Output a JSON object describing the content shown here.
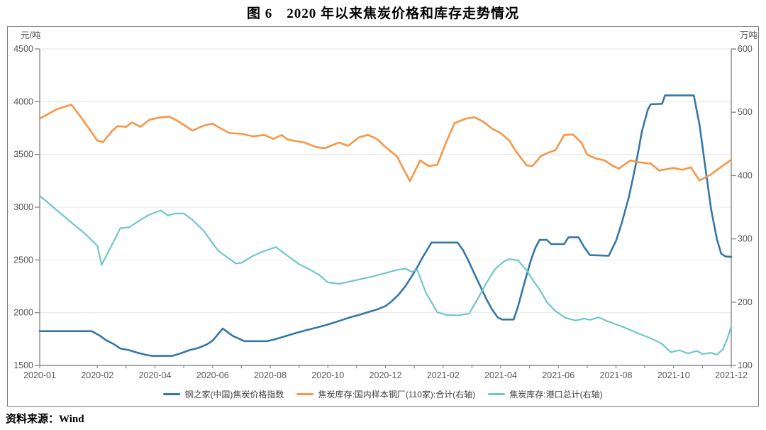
{
  "title": "图 6　2020 年以来焦炭价格和库存走势情况",
  "source_note": "资料来源：Wind",
  "colors": {
    "price_line": "#3478a6",
    "mill_inventory_line": "#f79646",
    "port_inventory_line": "#6fc8c6",
    "grid_line": "#e7e7e7",
    "axis_line": "#8a8a8a",
    "tick_text": "#595959",
    "frame_border": "#7d7d7d"
  },
  "chart_data": {
    "type": "line",
    "title": "图 6　2020 年以来焦炭价格和库存走势情况",
    "grid": "horizontal",
    "legend_position": "bottom",
    "x_tick_labels": [
      "2020-01",
      "2020-02",
      "2020-04",
      "2020-06",
      "2020-08",
      "2020-10",
      "2020-12",
      "2021-02",
      "2021-04",
      "2021-06",
      "2021-08",
      "2021-10",
      "2021-12"
    ],
    "x_tick_t": [
      0,
      1,
      3,
      5,
      7,
      9,
      11,
      13,
      15,
      17,
      19,
      21,
      23
    ],
    "x_months_total": 23,
    "left_axis": {
      "unit": "元/吨",
      "min": 1500,
      "max": 4500,
      "ticks": [
        4500,
        4000,
        3500,
        3000,
        2500,
        2000,
        1500
      ]
    },
    "right_axis": {
      "unit": "万吨",
      "min": 100,
      "max": 600,
      "ticks": [
        600,
        500,
        400,
        300,
        200,
        100
      ]
    },
    "series": [
      {
        "name": "钢之家(中国)焦炭价格指数",
        "axis": "left",
        "color": "#3478a6",
        "stroke_width": 2.6,
        "points": [
          [
            0,
            1825
          ],
          [
            0.9,
            1825
          ],
          [
            1.1,
            1780
          ],
          [
            1.3,
            1740
          ],
          [
            1.55,
            1705
          ],
          [
            1.8,
            1660
          ],
          [
            2.1,
            1645
          ],
          [
            2.4,
            1620
          ],
          [
            2.7,
            1600
          ],
          [
            2.9,
            1590
          ],
          [
            3.6,
            1590
          ],
          [
            3.9,
            1615
          ],
          [
            4.2,
            1645
          ],
          [
            4.5,
            1665
          ],
          [
            4.8,
            1700
          ],
          [
            5.0,
            1735
          ],
          [
            5.2,
            1800
          ],
          [
            5.35,
            1850
          ],
          [
            5.5,
            1820
          ],
          [
            5.7,
            1780
          ],
          [
            5.9,
            1755
          ],
          [
            6.1,
            1730
          ],
          [
            6.9,
            1730
          ],
          [
            7.2,
            1750
          ],
          [
            7.5,
            1775
          ],
          [
            7.8,
            1800
          ],
          [
            8.2,
            1830
          ],
          [
            8.6,
            1858
          ],
          [
            8.9,
            1880
          ],
          [
            9.2,
            1905
          ],
          [
            9.5,
            1932
          ],
          [
            9.8,
            1958
          ],
          [
            10.1,
            1980
          ],
          [
            10.4,
            2005
          ],
          [
            10.7,
            2030
          ],
          [
            11.0,
            2062
          ],
          [
            11.2,
            2105
          ],
          [
            11.45,
            2170
          ],
          [
            11.7,
            2255
          ],
          [
            11.9,
            2340
          ],
          [
            12.1,
            2430
          ],
          [
            12.3,
            2530
          ],
          [
            12.5,
            2620
          ],
          [
            12.6,
            2665
          ],
          [
            13.5,
            2665
          ],
          [
            13.7,
            2590
          ],
          [
            13.9,
            2480
          ],
          [
            14.1,
            2360
          ],
          [
            14.3,
            2245
          ],
          [
            14.5,
            2130
          ],
          [
            14.7,
            2030
          ],
          [
            14.9,
            1955
          ],
          [
            15.05,
            1935
          ],
          [
            15.45,
            1935
          ],
          [
            15.6,
            2060
          ],
          [
            15.75,
            2210
          ],
          [
            15.9,
            2360
          ],
          [
            16.05,
            2500
          ],
          [
            16.2,
            2615
          ],
          [
            16.35,
            2690
          ],
          [
            16.6,
            2690
          ],
          [
            16.75,
            2650
          ],
          [
            17.2,
            2650
          ],
          [
            17.35,
            2715
          ],
          [
            17.7,
            2715
          ],
          [
            17.9,
            2620
          ],
          [
            18.1,
            2545
          ],
          [
            18.75,
            2540
          ],
          [
            19.0,
            2680
          ],
          [
            19.2,
            2850
          ],
          [
            19.45,
            3100
          ],
          [
            19.7,
            3420
          ],
          [
            19.9,
            3720
          ],
          [
            20.1,
            3920
          ],
          [
            20.2,
            3975
          ],
          [
            20.6,
            3980
          ],
          [
            20.7,
            4060
          ],
          [
            21.7,
            4060
          ],
          [
            21.9,
            3780
          ],
          [
            22.1,
            3380
          ],
          [
            22.3,
            2980
          ],
          [
            22.5,
            2700
          ],
          [
            22.65,
            2560
          ],
          [
            22.8,
            2533
          ],
          [
            23,
            2530
          ]
        ]
      },
      {
        "name": "焦炭库存:国内样本钢厂(110家):合计(右轴)",
        "axis": "right",
        "color": "#f79646",
        "stroke_width": 2.6,
        "points": [
          [
            0,
            490
          ],
          [
            0.3,
            505
          ],
          [
            0.55,
            512
          ],
          [
            0.75,
            488
          ],
          [
            1.0,
            455
          ],
          [
            1.2,
            453
          ],
          [
            1.5,
            470
          ],
          [
            1.7,
            478
          ],
          [
            2.0,
            477
          ],
          [
            2.2,
            484
          ],
          [
            2.5,
            477
          ],
          [
            2.8,
            488
          ],
          [
            3.2,
            492
          ],
          [
            3.5,
            493
          ],
          [
            3.8,
            486
          ],
          [
            4.0,
            480
          ],
          [
            4.3,
            471
          ],
          [
            4.7,
            479
          ],
          [
            5.0,
            482
          ],
          [
            5.3,
            474
          ],
          [
            5.6,
            467
          ],
          [
            6.0,
            466
          ],
          [
            6.4,
            462
          ],
          [
            6.8,
            464
          ],
          [
            7.1,
            458
          ],
          [
            7.4,
            464
          ],
          [
            7.6,
            457
          ],
          [
            8.2,
            452
          ],
          [
            8.6,
            445
          ],
          [
            8.9,
            443
          ],
          [
            9.2,
            449
          ],
          [
            9.4,
            452
          ],
          [
            9.7,
            447
          ],
          [
            10.1,
            461
          ],
          [
            10.4,
            464
          ],
          [
            10.7,
            458
          ],
          [
            11.0,
            445
          ],
          [
            11.4,
            430
          ],
          [
            11.85,
            391
          ],
          [
            12.2,
            424
          ],
          [
            12.5,
            415
          ],
          [
            12.8,
            417
          ],
          [
            13.1,
            452
          ],
          [
            13.4,
            483
          ],
          [
            13.8,
            490
          ],
          [
            14.1,
            492
          ],
          [
            14.4,
            485
          ],
          [
            14.7,
            474
          ],
          [
            15.0,
            467
          ],
          [
            15.3,
            455
          ],
          [
            15.5,
            440
          ],
          [
            15.9,
            416
          ],
          [
            16.1,
            415
          ],
          [
            16.4,
            431
          ],
          [
            16.7,
            437
          ],
          [
            16.9,
            440
          ],
          [
            17.2,
            464
          ],
          [
            17.5,
            465
          ],
          [
            17.8,
            452
          ],
          [
            18.0,
            433
          ],
          [
            18.3,
            427
          ],
          [
            18.6,
            424
          ],
          [
            18.9,
            415
          ],
          [
            19.1,
            411
          ],
          [
            19.5,
            424
          ],
          [
            19.8,
            421
          ],
          [
            20.2,
            419
          ],
          [
            20.5,
            408
          ],
          [
            21.0,
            412
          ],
          [
            21.3,
            409
          ],
          [
            21.6,
            413
          ],
          [
            21.9,
            392
          ],
          [
            22.3,
            402
          ],
          [
            22.6,
            412
          ],
          [
            23,
            425
          ]
        ]
      },
      {
        "name": "焦炭库存:港口总计(右轴)",
        "axis": "right",
        "color": "#6fc8c6",
        "stroke_width": 2.2,
        "points": [
          [
            0,
            368
          ],
          [
            0.3,
            345
          ],
          [
            0.6,
            322
          ],
          [
            0.8,
            307
          ],
          [
            1.0,
            289
          ],
          [
            1.15,
            259
          ],
          [
            1.5,
            290
          ],
          [
            1.8,
            317
          ],
          [
            2.1,
            318
          ],
          [
            2.5,
            330
          ],
          [
            2.8,
            338
          ],
          [
            3.2,
            345
          ],
          [
            3.45,
            337
          ],
          [
            3.7,
            340
          ],
          [
            4.0,
            340
          ],
          [
            4.3,
            330
          ],
          [
            4.7,
            312
          ],
          [
            5.0,
            293
          ],
          [
            5.2,
            281
          ],
          [
            5.8,
            261
          ],
          [
            6.0,
            262
          ],
          [
            6.4,
            273
          ],
          [
            6.75,
            280
          ],
          [
            7.2,
            287
          ],
          [
            7.7,
            270
          ],
          [
            8.0,
            260
          ],
          [
            8.35,
            252
          ],
          [
            8.7,
            243
          ],
          [
            9.0,
            231
          ],
          [
            9.4,
            229
          ],
          [
            9.8,
            233
          ],
          [
            10.2,
            237
          ],
          [
            10.6,
            241
          ],
          [
            11.0,
            246
          ],
          [
            11.4,
            251
          ],
          [
            11.7,
            253
          ],
          [
            11.9,
            248
          ],
          [
            12.1,
            251
          ],
          [
            12.4,
            215
          ],
          [
            12.8,
            184
          ],
          [
            13.1,
            180
          ],
          [
            13.5,
            179
          ],
          [
            13.9,
            182
          ],
          [
            14.2,
            205
          ],
          [
            14.5,
            230
          ],
          [
            14.8,
            252
          ],
          [
            15.1,
            264
          ],
          [
            15.3,
            268
          ],
          [
            15.6,
            266
          ],
          [
            15.9,
            250
          ],
          [
            16.1,
            236
          ],
          [
            16.35,
            220
          ],
          [
            16.6,
            200
          ],
          [
            16.9,
            186
          ],
          [
            17.25,
            175
          ],
          [
            17.6,
            171
          ],
          [
            17.9,
            174
          ],
          [
            18.1,
            172
          ],
          [
            18.4,
            176
          ],
          [
            18.7,
            170
          ],
          [
            19.0,
            165
          ],
          [
            19.4,
            158
          ],
          [
            19.8,
            150
          ],
          [
            20.2,
            143
          ],
          [
            20.6,
            134
          ],
          [
            20.9,
            121
          ],
          [
            21.2,
            124
          ],
          [
            21.5,
            119
          ],
          [
            21.8,
            123
          ],
          [
            22.0,
            118
          ],
          [
            22.3,
            120
          ],
          [
            22.5,
            117
          ],
          [
            22.7,
            125
          ],
          [
            22.85,
            140
          ],
          [
            23,
            162
          ]
        ]
      }
    ]
  }
}
